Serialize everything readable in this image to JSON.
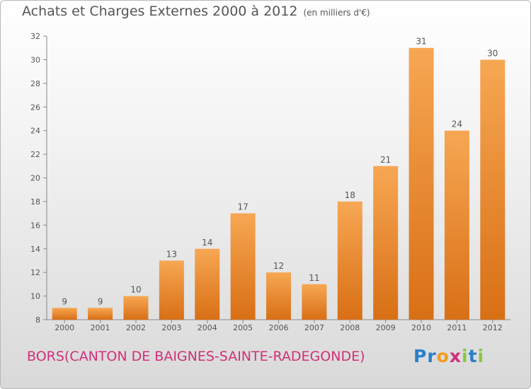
{
  "header": {
    "title": "Achats et Charges Externes 2000 à 2012",
    "subtitle": "(en milliers d'€)"
  },
  "footer": {
    "place": "BORS(CANTON DE BAIGNES-SAINTE-RADEGONDE)",
    "brand_letters": [
      "P",
      "r",
      "o",
      "x",
      "i",
      "t",
      "i"
    ],
    "brand_colors": [
      "#2a7fc9",
      "#2a7fc9",
      "#f39c1f",
      "#d0307a",
      "#8cc63f",
      "#2a7fc9",
      "#8cc63f"
    ]
  },
  "chart_data": {
    "type": "bar",
    "categories": [
      "2000",
      "2001",
      "2002",
      "2003",
      "2004",
      "2005",
      "2006",
      "2007",
      "2008",
      "2009",
      "2010",
      "2011",
      "2012"
    ],
    "values": [
      9,
      9,
      10,
      13,
      14,
      17,
      12,
      11,
      18,
      21,
      31,
      24,
      30
    ],
    "title": "Achats et Charges Externes 2000 à 2012",
    "ylim": [
      8,
      32
    ],
    "yticks": [
      8,
      10,
      12,
      14,
      16,
      18,
      20,
      22,
      24,
      26,
      28,
      30,
      32
    ],
    "grid": false,
    "bar_color_top": "#f7a753",
    "bar_color_bottom": "#d86f15"
  }
}
